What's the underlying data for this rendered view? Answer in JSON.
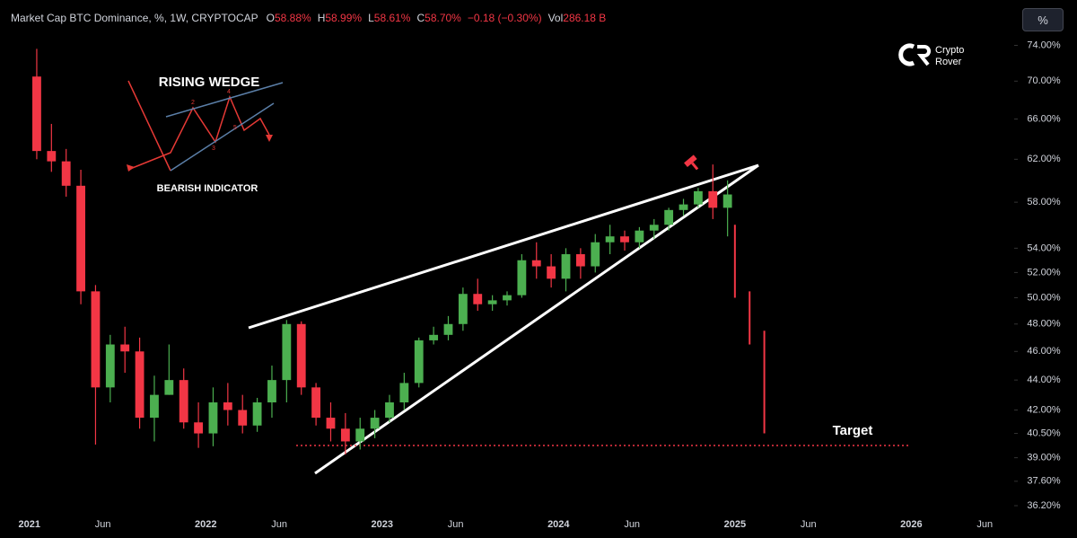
{
  "header": {
    "symbol": "Market Cap BTC Dominance, %, 1W, CRYPTOCAP",
    "fields": [
      {
        "label": "O",
        "value": "58.88%"
      },
      {
        "label": "H",
        "value": "58.99%"
      },
      {
        "label": "L",
        "value": "58.61%"
      },
      {
        "label": "C",
        "value": "58.70%"
      }
    ],
    "change": "−0.18 (−0.30%)",
    "volume_label": "Vol",
    "volume_value": "286.18 B",
    "scale_button": "%"
  },
  "watermark": {
    "line1": "Crypto",
    "line2": "Rover"
  },
  "inset": {
    "title": "RISING WEDGE",
    "subtitle": "BEARISH INDICATOR",
    "points": [
      "2",
      "3",
      "4",
      "5"
    ]
  },
  "chart_data": {
    "type": "candlestick",
    "log_scale": true,
    "up_color": "#4caf50",
    "down_color": "#f23645",
    "annotation": "Target",
    "x": [
      "2021-01",
      "2021-02",
      "2021-03",
      "2021-04",
      "2021-05",
      "2021-06",
      "2021-07",
      "2021-08",
      "2021-09",
      "2021-10",
      "2021-11",
      "2021-12",
      "2022-01",
      "2022-02",
      "2022-03",
      "2022-04",
      "2022-05",
      "2022-06",
      "2022-07",
      "2022-08",
      "2022-09",
      "2022-10",
      "2022-11",
      "2022-12",
      "2023-01",
      "2023-02",
      "2023-03",
      "2023-04",
      "2023-05",
      "2023-06",
      "2023-07",
      "2023-08",
      "2023-09",
      "2023-10",
      "2023-11",
      "2023-12",
      "2024-01",
      "2024-02",
      "2024-03",
      "2024-04",
      "2024-05",
      "2024-06",
      "2024-07",
      "2024-08",
      "2024-09",
      "2024-10",
      "2024-11",
      "2024-12"
    ],
    "open": [
      70.5,
      62.8,
      61.8,
      59.5,
      50.5,
      43.5,
      46.5,
      46.0,
      41.5,
      43.0,
      44.0,
      41.2,
      40.5,
      42.5,
      42.0,
      41.0,
      42.5,
      44.0,
      48.0,
      43.5,
      41.5,
      40.8,
      40.0,
      40.8,
      41.5,
      42.5,
      43.8,
      46.8,
      47.2,
      48.0,
      50.3,
      49.5,
      49.8,
      50.2,
      53.0,
      52.5,
      51.5,
      53.5,
      52.5,
      54.5,
      55.0,
      54.5,
      55.5,
      56.0,
      57.3,
      57.8,
      59.0,
      57.5
    ],
    "high": [
      73.6,
      65.5,
      63.0,
      61.0,
      51.0,
      47.2,
      47.8,
      47.0,
      44.3,
      46.5,
      44.8,
      42.5,
      43.5,
      43.8,
      43.0,
      42.8,
      45.0,
      48.3,
      48.2,
      43.8,
      42.5,
      41.8,
      41.5,
      42.0,
      43.0,
      44.5,
      47.0,
      47.8,
      48.6,
      50.8,
      51.5,
      50.2,
      50.5,
      53.5,
      54.5,
      53.5,
      54.0,
      54.0,
      55.2,
      56.0,
      55.5,
      55.8,
      56.5,
      57.5,
      58.3,
      59.3,
      61.5,
      60.0
    ],
    "low": [
      62.0,
      60.8,
      58.5,
      49.5,
      39.8,
      42.5,
      44.5,
      40.8,
      40.0,
      43.0,
      40.8,
      39.6,
      39.7,
      41.0,
      40.5,
      40.6,
      41.5,
      42.5,
      43.0,
      41.0,
      40.0,
      39.2,
      39.5,
      40.2,
      41.2,
      42.0,
      43.5,
      46.5,
      46.8,
      47.5,
      49.0,
      49.0,
      49.4,
      50.0,
      51.5,
      50.8,
      50.5,
      51.5,
      52.0,
      53.5,
      53.8,
      54.0,
      54.8,
      55.5,
      56.8,
      57.5,
      56.5,
      55.0
    ],
    "close": [
      62.8,
      61.8,
      59.5,
      50.5,
      43.5,
      46.5,
      46.0,
      41.5,
      43.0,
      44.0,
      41.2,
      40.5,
      42.5,
      42.0,
      41.0,
      42.5,
      44.0,
      48.0,
      43.5,
      41.5,
      40.8,
      40.0,
      40.8,
      41.5,
      42.5,
      43.8,
      46.8,
      47.2,
      48.0,
      50.3,
      49.5,
      49.8,
      50.2,
      53.0,
      52.5,
      51.5,
      53.5,
      52.5,
      54.5,
      55.0,
      54.5,
      55.5,
      56.0,
      57.3,
      57.8,
      59.0,
      57.5,
      58.7
    ],
    "projection": {
      "x": [
        "2025-01",
        "2025-02",
        "2025-03"
      ],
      "high": [
        56.0,
        50.5,
        47.5
      ],
      "low": [
        50.0,
        46.5,
        40.5
      ]
    },
    "xlim": [
      "2020-11",
      "2026-08"
    ],
    "xticks": [
      {
        "value": "2021-01",
        "label": "2021"
      },
      {
        "value": "2021-06",
        "label": "Jun"
      },
      {
        "value": "2022-01",
        "label": "2022"
      },
      {
        "value": "2022-06",
        "label": "Jun"
      },
      {
        "value": "2023-01",
        "label": "2023"
      },
      {
        "value": "2023-06",
        "label": "Jun"
      },
      {
        "value": "2024-01",
        "label": "2024"
      },
      {
        "value": "2024-06",
        "label": "Jun"
      },
      {
        "value": "2025-01",
        "label": "2025"
      },
      {
        "value": "2025-06",
        "label": "Jun"
      },
      {
        "value": "2026-01",
        "label": "2026"
      },
      {
        "value": "2026-06",
        "label": "Jun"
      }
    ],
    "ylim": [
      35.6,
      79.4
    ],
    "yticks": [
      {
        "value": 74,
        "label": "74.00%"
      },
      {
        "value": 70,
        "label": "70.00%"
      },
      {
        "value": 66,
        "label": "66.00%"
      },
      {
        "value": 62,
        "label": "62.00%"
      },
      {
        "value": 58,
        "label": "58.00%"
      },
      {
        "value": 54,
        "label": "54.00%"
      },
      {
        "value": 52,
        "label": "52.00%"
      },
      {
        "value": 50,
        "label": "50.00%"
      },
      {
        "value": 48,
        "label": "48.00%"
      },
      {
        "value": 46,
        "label": "46.00%"
      },
      {
        "value": 44,
        "label": "44.00%"
      },
      {
        "value": 42,
        "label": "42.00%"
      },
      {
        "value": 40.5,
        "label": "40.50%"
      },
      {
        "value": 39,
        "label": "39.00%"
      },
      {
        "value": 37.6,
        "label": "37.60%"
      },
      {
        "value": 36.2,
        "label": "36.20%"
      }
    ]
  }
}
